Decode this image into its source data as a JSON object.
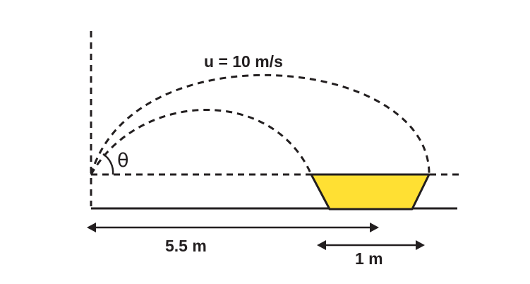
{
  "labels": {
    "speed": "u = 10 m/s",
    "angle": "θ",
    "distance": "5.5 m",
    "width": "1 m"
  },
  "colors": {
    "stroke": "#231f20",
    "basket_fill": "#ffe033"
  }
}
